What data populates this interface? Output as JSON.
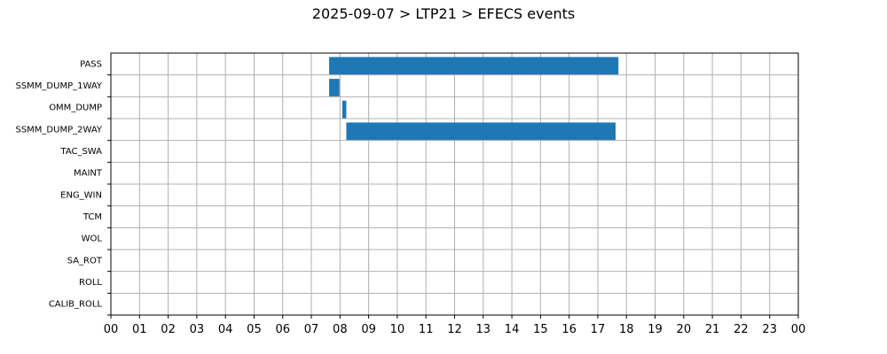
{
  "chart_data": {
    "type": "bar",
    "orientation": "horizontal",
    "title": "2025-09-07 > LTP21 > EFECS events",
    "xlabel": "",
    "ylabel": "",
    "x_unit": "hour",
    "xlim": [
      0,
      24
    ],
    "x_tick_labels": [
      "00",
      "01",
      "02",
      "03",
      "04",
      "05",
      "06",
      "07",
      "08",
      "09",
      "10",
      "11",
      "12",
      "13",
      "14",
      "15",
      "16",
      "17",
      "18",
      "19",
      "20",
      "21",
      "22",
      "23",
      "00"
    ],
    "categories": [
      "PASS",
      "SSMM_DUMP_1WAY",
      "OMM_DUMP",
      "SSMM_DUMP_2WAY",
      "TAC_SWA",
      "MAINT",
      "ENG_WIN",
      "TCM",
      "WOL",
      "SA_ROT",
      "ROLL",
      "CALIB_ROLL"
    ],
    "intervals": [
      {
        "category": "PASS",
        "start": 7.62,
        "end": 17.72
      },
      {
        "category": "SSMM_DUMP_1WAY",
        "start": 7.62,
        "end": 7.98
      },
      {
        "category": "OMM_DUMP",
        "start": 8.08,
        "end": 8.22
      },
      {
        "category": "SSMM_DUMP_2WAY",
        "start": 8.22,
        "end": 17.62
      }
    ],
    "grid": true,
    "legend": "none",
    "colors": {
      "bar": "#1f77b4",
      "grid": "#b0b0b0",
      "axis": "#000000"
    }
  }
}
